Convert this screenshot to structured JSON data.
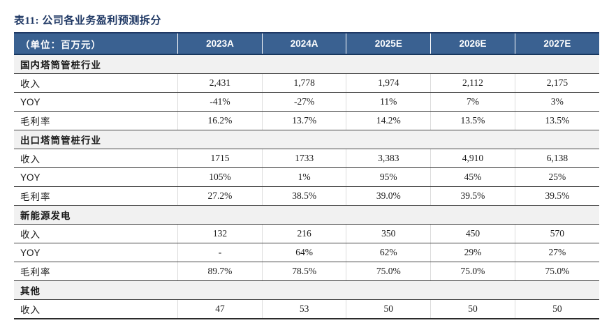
{
  "page": {
    "title": "表11: 公司各业务盈利预测拆分"
  },
  "colors": {
    "title_text": "#1f3864",
    "header_bg": "#3a6191",
    "header_text": "#ffffff",
    "section_row_bg": "#f1f1f1",
    "row_border": "#454545",
    "column_divider": "#dcdcdc",
    "table_top_border": "#1f3864"
  },
  "chart_data": {
    "type": "table",
    "title": "表11: 公司各业务盈利预测拆分",
    "unit_label": "（单位：百万元）",
    "header": [
      "（单位：百万元）",
      "2023A",
      "2024A",
      "2025E",
      "2026E",
      "2027E"
    ],
    "rows": [
      {
        "type": "section",
        "label": "国内塔筒管桩行业"
      },
      {
        "type": "data",
        "label": "收入",
        "values": [
          "2,431",
          "1,778",
          "1,974",
          "2,112",
          "2,175"
        ]
      },
      {
        "type": "data",
        "label": "YOY",
        "values": [
          "-41%",
          "-27%",
          "11%",
          "7%",
          "3%"
        ]
      },
      {
        "type": "data",
        "label": "毛利率",
        "values": [
          "16.2%",
          "13.7%",
          "14.2%",
          "13.5%",
          "13.5%"
        ]
      },
      {
        "type": "section",
        "label": "出口塔筒管桩行业"
      },
      {
        "type": "data",
        "label": "收入",
        "values": [
          "1715",
          "1733",
          "3,383",
          "4,910",
          "6,138"
        ]
      },
      {
        "type": "data",
        "label": "YOY",
        "values": [
          "105%",
          "1%",
          "95%",
          "45%",
          "25%"
        ]
      },
      {
        "type": "data",
        "label": "毛利率",
        "values": [
          "27.2%",
          "38.5%",
          "39.0%",
          "39.5%",
          "39.5%"
        ]
      },
      {
        "type": "section",
        "label": "新能源发电"
      },
      {
        "type": "data",
        "label": "收入",
        "values": [
          "132",
          "216",
          "350",
          "450",
          "570"
        ]
      },
      {
        "type": "data",
        "label": "YOY",
        "values": [
          "-",
          "64%",
          "62%",
          "29%",
          "27%"
        ]
      },
      {
        "type": "data",
        "label": "毛利率",
        "values": [
          "89.7%",
          "78.5%",
          "75.0%",
          "75.0%",
          "75.0%"
        ]
      },
      {
        "type": "section",
        "label": "其他"
      },
      {
        "type": "data",
        "label": "收入",
        "values": [
          "47",
          "53",
          "50",
          "50",
          "50"
        ]
      }
    ]
  }
}
